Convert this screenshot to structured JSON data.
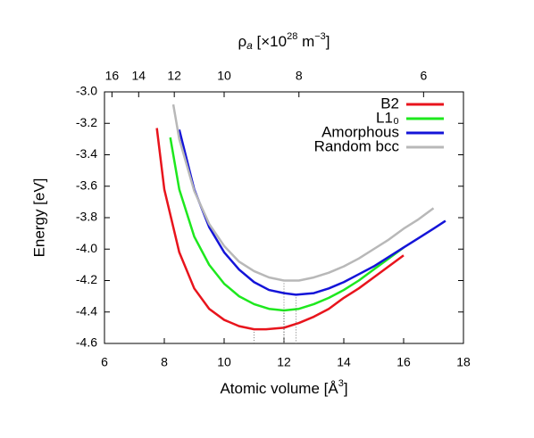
{
  "chart_data": {
    "type": "line",
    "xlabel": [
      "Atomic volume [Å",
      "3",
      "]"
    ],
    "ylabel": "Energy [eV]",
    "x2label": [
      "ρ",
      "a",
      " [×10",
      "28",
      " m",
      "−3",
      "]"
    ],
    "xlim": [
      6,
      18
    ],
    "xticks": [
      6,
      8,
      10,
      12,
      14,
      16,
      18
    ],
    "x2lim": [
      16.667,
      5.556
    ],
    "x2ticks": [
      16,
      14,
      12,
      10,
      8,
      6
    ],
    "ylim": [
      -4.6,
      -3.0
    ],
    "yticks": [
      {
        "value": -4.6,
        "label": "-4.6"
      },
      {
        "value": -4.4,
        "label": "-4.4"
      },
      {
        "value": -4.2,
        "label": "-4.2"
      },
      {
        "value": -4.0,
        "label": "-4.0"
      },
      {
        "value": -3.8,
        "label": "-3.8"
      },
      {
        "value": -3.6,
        "label": "-3.6"
      },
      {
        "value": -3.4,
        "label": "-3.4"
      },
      {
        "value": -3.2,
        "label": "-3.2"
      },
      {
        "value": -3.0,
        "label": "-3.0"
      }
    ],
    "grid": false,
    "legend": "upper right",
    "series": [
      {
        "name": "B2",
        "color": "#e8141c",
        "x": [
          7.75,
          8.0,
          8.5,
          9,
          9.5,
          10,
          10.5,
          11,
          11.4,
          12,
          12.5,
          13,
          13.5,
          14,
          14.5,
          15,
          15.5,
          16
        ],
        "values": [
          -3.23,
          -3.62,
          -4.02,
          -4.25,
          -4.38,
          -4.45,
          -4.49,
          -4.51,
          -4.51,
          -4.5,
          -4.47,
          -4.43,
          -4.38,
          -4.31,
          -4.25,
          -4.18,
          -4.11,
          -4.04
        ]
      },
      {
        "name": "L1₀",
        "color": "#1ee81e",
        "x": [
          8.2,
          8.5,
          9,
          9.5,
          10,
          10.5,
          11,
          11.5,
          12,
          12.5,
          13,
          13.5,
          14,
          14.5,
          15,
          15.5,
          16
        ],
        "values": [
          -3.29,
          -3.62,
          -3.92,
          -4.1,
          -4.22,
          -4.3,
          -4.35,
          -4.38,
          -4.39,
          -4.38,
          -4.35,
          -4.31,
          -4.26,
          -4.2,
          -4.13,
          -4.06,
          -3.99
        ]
      },
      {
        "name": "Amorphous",
        "color": "#1414d8",
        "x": [
          8.5,
          9,
          9.5,
          10,
          10.5,
          11,
          11.5,
          12,
          12.4,
          13,
          13.5,
          14,
          14.5,
          15,
          15.5,
          16,
          16.5,
          17,
          17.4
        ],
        "values": [
          -3.24,
          -3.62,
          -3.86,
          -4.02,
          -4.13,
          -4.21,
          -4.26,
          -4.28,
          -4.29,
          -4.28,
          -4.25,
          -4.21,
          -4.16,
          -4.11,
          -4.05,
          -3.99,
          -3.93,
          -3.87,
          -3.82
        ]
      },
      {
        "name": "Random bcc",
        "color": "#b8b8b8",
        "x": [
          8.3,
          8.5,
          9,
          9.5,
          10,
          10.5,
          11,
          11.5,
          12,
          12.5,
          13,
          13.5,
          14,
          14.5,
          15,
          15.5,
          16,
          16.5,
          17
        ],
        "values": [
          -3.08,
          -3.3,
          -3.63,
          -3.84,
          -3.98,
          -4.08,
          -4.14,
          -4.18,
          -4.2,
          -4.2,
          -4.18,
          -4.15,
          -4.11,
          -4.06,
          -4.0,
          -3.94,
          -3.87,
          -3.81,
          -3.74
        ]
      }
    ]
  }
}
